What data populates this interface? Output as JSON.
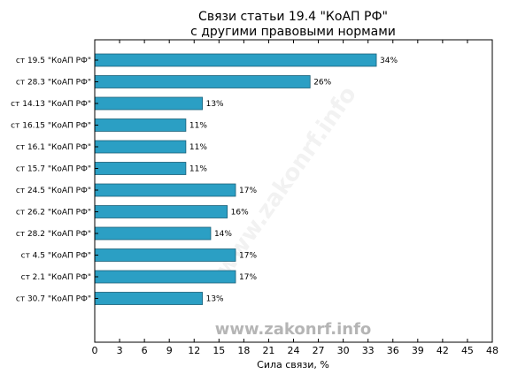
{
  "chart_data": {
    "type": "bar",
    "orientation": "horizontal",
    "title": "Связи статьи 19.4 \"КоАП РФ\"",
    "subtitle": "с другими правовыми нормами",
    "xlabel": "Сила связи, %",
    "xlim": [
      0,
      48
    ],
    "xticks": [
      0,
      3,
      6,
      9,
      12,
      15,
      18,
      21,
      24,
      27,
      30,
      33,
      36,
      39,
      42,
      45,
      48
    ],
    "categories": [
      "ст 19.5 \"КоАП РФ\"",
      "ст 28.3 \"КоАП РФ\"",
      "ст 14.13 \"КоАП РФ\"",
      "ст 16.15 \"КоАП РФ\"",
      "ст 16.1 \"КоАП РФ\"",
      "ст 15.7 \"КоАП РФ\"",
      "ст 24.5 \"КоАП РФ\"",
      "ст 26.2 \"КоАП РФ\"",
      "ст 28.2 \"КоАП РФ\"",
      "ст 4.5 \"КоАП РФ\"",
      "ст 2.1 \"КоАП РФ\"",
      "ст 30.7 \"КоАП РФ\""
    ],
    "values": [
      34,
      26,
      13,
      11,
      11,
      11,
      17,
      16,
      14,
      17,
      17,
      13
    ],
    "data_labels": [
      "34%",
      "26%",
      "13%",
      "11%",
      "11%",
      "11%",
      "17%",
      "16%",
      "14%",
      "17%",
      "17%",
      "13%"
    ],
    "bar_color": "#2b9fc4",
    "bar_edge_color": "#1a5f78",
    "grid": false
  },
  "watermark": "www.zakonrf.info",
  "watermark_diagonal": "www.zakonrf.info"
}
